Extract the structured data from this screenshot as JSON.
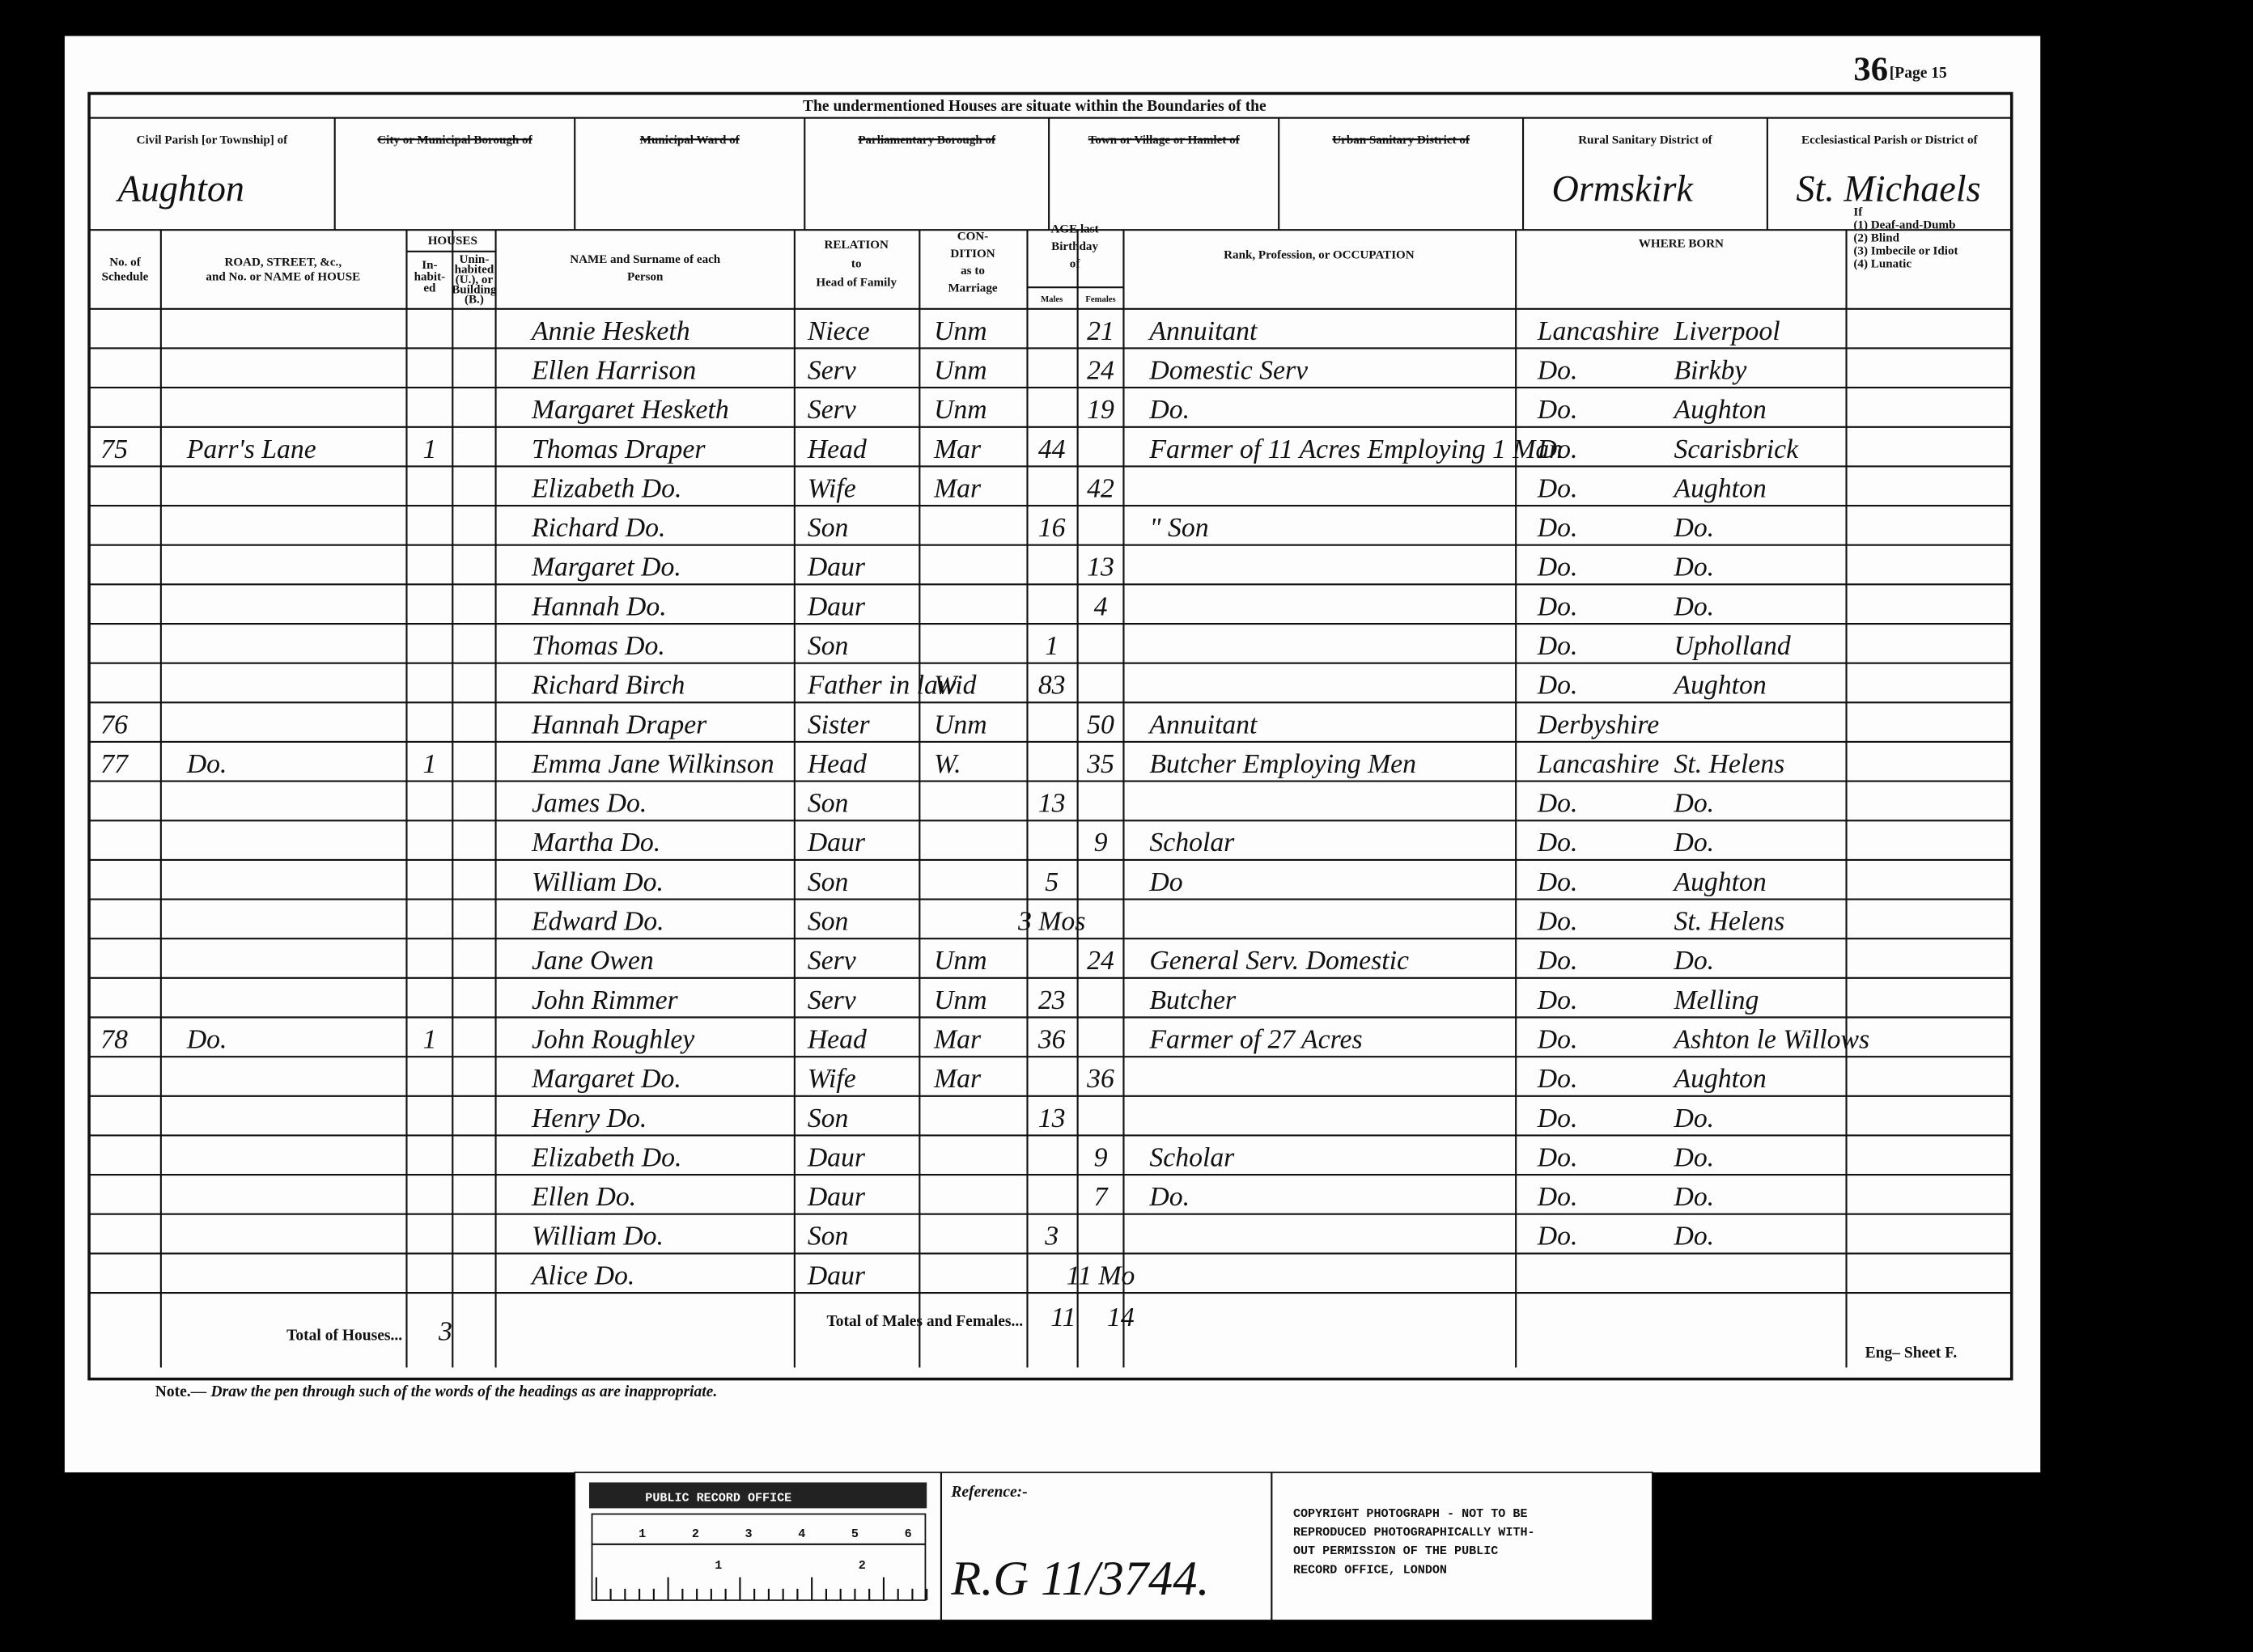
{
  "header": {
    "page_number": "36",
    "page_label": "[Page 15",
    "title": "The undermentioned Houses are situate within the Boundaries of the"
  },
  "location": [
    {
      "label": "Civil Parish [or Township] of",
      "value": "Aughton"
    },
    {
      "label": "City or Municipal Borough of",
      "struck": true
    },
    {
      "label": "Municipal Ward of",
      "struck": true
    },
    {
      "label": "Parliamentary Borough of",
      "struck": true
    },
    {
      "label": "Town or Village or Hamlet of",
      "struck": true
    },
    {
      "label": "Urban Sanitary District of",
      "struck": true
    },
    {
      "label": "Rural Sanitary District of",
      "value": "Ormskirk"
    },
    {
      "label": "Ecclesiastical Parish or District of",
      "value": "St. Michaels"
    }
  ],
  "columns": {
    "schedule": [
      "No. of",
      "Schedule"
    ],
    "road": [
      "ROAD, STREET, &c.,",
      "and No. or NAME of HOUSE"
    ],
    "houses": "HOUSES",
    "inhabited": [
      "In-",
      "habit-",
      "ed"
    ],
    "uninhabited": [
      "Unin-",
      "habited",
      "(U.), or",
      "Building",
      "(B.)"
    ],
    "name": [
      "NAME and Surname of each",
      "Person"
    ],
    "relation": [
      "RELATION",
      "to",
      "Head of Family"
    ],
    "condition": [
      "CON-",
      "DITION",
      "as to",
      "Marriage"
    ],
    "age": [
      "AGE last",
      "Birthday",
      "of"
    ],
    "males": "Males",
    "females": "Females",
    "occupation": [
      "Rank, Profession, or OCCUPATION"
    ],
    "born": [
      "WHERE BORN"
    ],
    "infirm": [
      "If",
      "(1) Deaf-and-Dumb",
      "(2) Blind",
      "(3) Imbecile or Idiot",
      "(4) Lunatic"
    ]
  },
  "rows": [
    {
      "name": "Annie Hesketh",
      "relation": "Niece",
      "condition": "Unm",
      "female": "21",
      "occupation": "Annuitant",
      "born_county": "Lancashire",
      "born_place": "Liverpool"
    },
    {
      "name": "Ellen Harrison",
      "relation": "Serv",
      "condition": "Unm",
      "female": "24",
      "occupation": "Domestic Serv",
      "born_county": "Do.",
      "born_place": "Birkby"
    },
    {
      "name": "Margaret Hesketh",
      "relation": "Serv",
      "condition": "Unm",
      "female": "19",
      "occupation": "Do.",
      "born_county": "Do.",
      "born_place": "Aughton"
    },
    {
      "schedule": "75",
      "road": "Parr's Lane",
      "inhabited": "1",
      "name": "Thomas Draper",
      "relation": "Head",
      "condition": "Mar",
      "male": "44",
      "occupation": "Farmer of 11 Acres Employing 1 Man",
      "born_county": "Do.",
      "born_place": "Scarisbrick"
    },
    {
      "name": "Elizabeth Do.",
      "relation": "Wife",
      "condition": "Mar",
      "female": "42",
      "born_county": "Do.",
      "born_place": "Aughton"
    },
    {
      "name": "Richard Do.",
      "relation": "Son",
      "male": "16",
      "occupation": "\" Son",
      "born_county": "Do.",
      "born_place": "Do."
    },
    {
      "name": "Margaret Do.",
      "relation": "Daur",
      "female": "13",
      "born_county": "Do.",
      "born_place": "Do."
    },
    {
      "name": "Hannah Do.",
      "relation": "Daur",
      "female": "4",
      "born_county": "Do.",
      "born_place": "Do."
    },
    {
      "name": "Thomas Do.",
      "relation": "Son",
      "male": "1",
      "born_county": "Do.",
      "born_place": "Upholland"
    },
    {
      "name": "Richard Birch",
      "relation": "Father in law",
      "condition": "Wid",
      "male": "83",
      "born_county": "Do.",
      "born_place": "Aughton"
    },
    {
      "schedule": "76",
      "name": "Hannah Draper",
      "relation": "Sister",
      "condition": "Unm",
      "female": "50",
      "occupation": "Annuitant",
      "born_county": "Derbyshire"
    },
    {
      "schedule": "77",
      "road": "Do.",
      "inhabited": "1",
      "name": "Emma Jane Wilkinson",
      "relation": "Head",
      "condition": "W.",
      "female": "35",
      "occupation": "Butcher Employing Men",
      "born_county": "Lancashire",
      "born_place": "St. Helens"
    },
    {
      "name": "James Do.",
      "relation": "Son",
      "male": "13",
      "born_county": "Do.",
      "born_place": "Do."
    },
    {
      "name": "Martha Do.",
      "relation": "Daur",
      "female": "9",
      "occupation": "Scholar",
      "born_county": "Do.",
      "born_place": "Do."
    },
    {
      "name": "William Do.",
      "relation": "Son",
      "male": "5",
      "occupation": "Do",
      "born_county": "Do.",
      "born_place": "Aughton"
    },
    {
      "name": "Edward Do.",
      "relation": "Son",
      "male": "3 Mos",
      "born_county": "Do.",
      "born_place": "St. Helens"
    },
    {
      "name": "Jane Owen",
      "relation": "Serv",
      "condition": "Unm",
      "female": "24",
      "occupation": "General Serv. Domestic",
      "born_county": "Do.",
      "born_place": "Do."
    },
    {
      "name": "John Rimmer",
      "relation": "Serv",
      "condition": "Unm",
      "male": "23",
      "occupation": "Butcher",
      "born_county": "Do.",
      "born_place": "Melling"
    },
    {
      "schedule": "78",
      "road": "Do.",
      "inhabited": "1",
      "name": "John Roughley",
      "relation": "Head",
      "condition": "Mar",
      "male": "36",
      "occupation": "Farmer of 27 Acres",
      "born_county": "Do.",
      "born_place": "Ashton le Willows"
    },
    {
      "name": "Margaret Do.",
      "relation": "Wife",
      "condition": "Mar",
      "female": "36",
      "born_county": "Do.",
      "born_place": "Aughton"
    },
    {
      "name": "Henry Do.",
      "relation": "Son",
      "male": "13",
      "born_county": "Do.",
      "born_place": "Do."
    },
    {
      "name": "Elizabeth Do.",
      "relation": "Daur",
      "female": "9",
      "occupation": "Scholar",
      "born_county": "Do.",
      "born_place": "Do."
    },
    {
      "name": "Ellen Do.",
      "relation": "Daur",
      "female": "7",
      "occupation": "Do.",
      "born_county": "Do.",
      "born_place": "Do."
    },
    {
      "name": "William Do.",
      "relation": "Son",
      "male": "3",
      "born_county": "Do.",
      "born_place": "Do."
    },
    {
      "name": "Alice Do.",
      "relation": "Daur",
      "female": "11 Mo"
    }
  ],
  "totals": {
    "houses_label": "Total of Houses...",
    "houses": "3",
    "persons_label": "Total of Males and Females...",
    "males": "11",
    "females": "14"
  },
  "footer": {
    "sheet": "Eng– Sheet F.",
    "note_prefix": "Note.—",
    "note": "Draw the pen through such of the words of the headings as are inappropriate."
  },
  "stamp": {
    "office": "PUBLIC RECORD OFFICE",
    "ruler_top": [
      "1",
      "2",
      "3",
      "4",
      "5",
      "6"
    ],
    "ruler_bottom": [
      "1",
      "2"
    ],
    "reference_label": "Reference:-",
    "reference": "R.G 11/3744.",
    "copyright": [
      "COPYRIGHT PHOTOGRAPH - NOT TO BE",
      "REPRODUCED PHOTOGRAPHICALLY WITH-",
      "OUT PERMISSION OF THE PUBLIC",
      "RECORD OFFICE, LONDON"
    ]
  }
}
